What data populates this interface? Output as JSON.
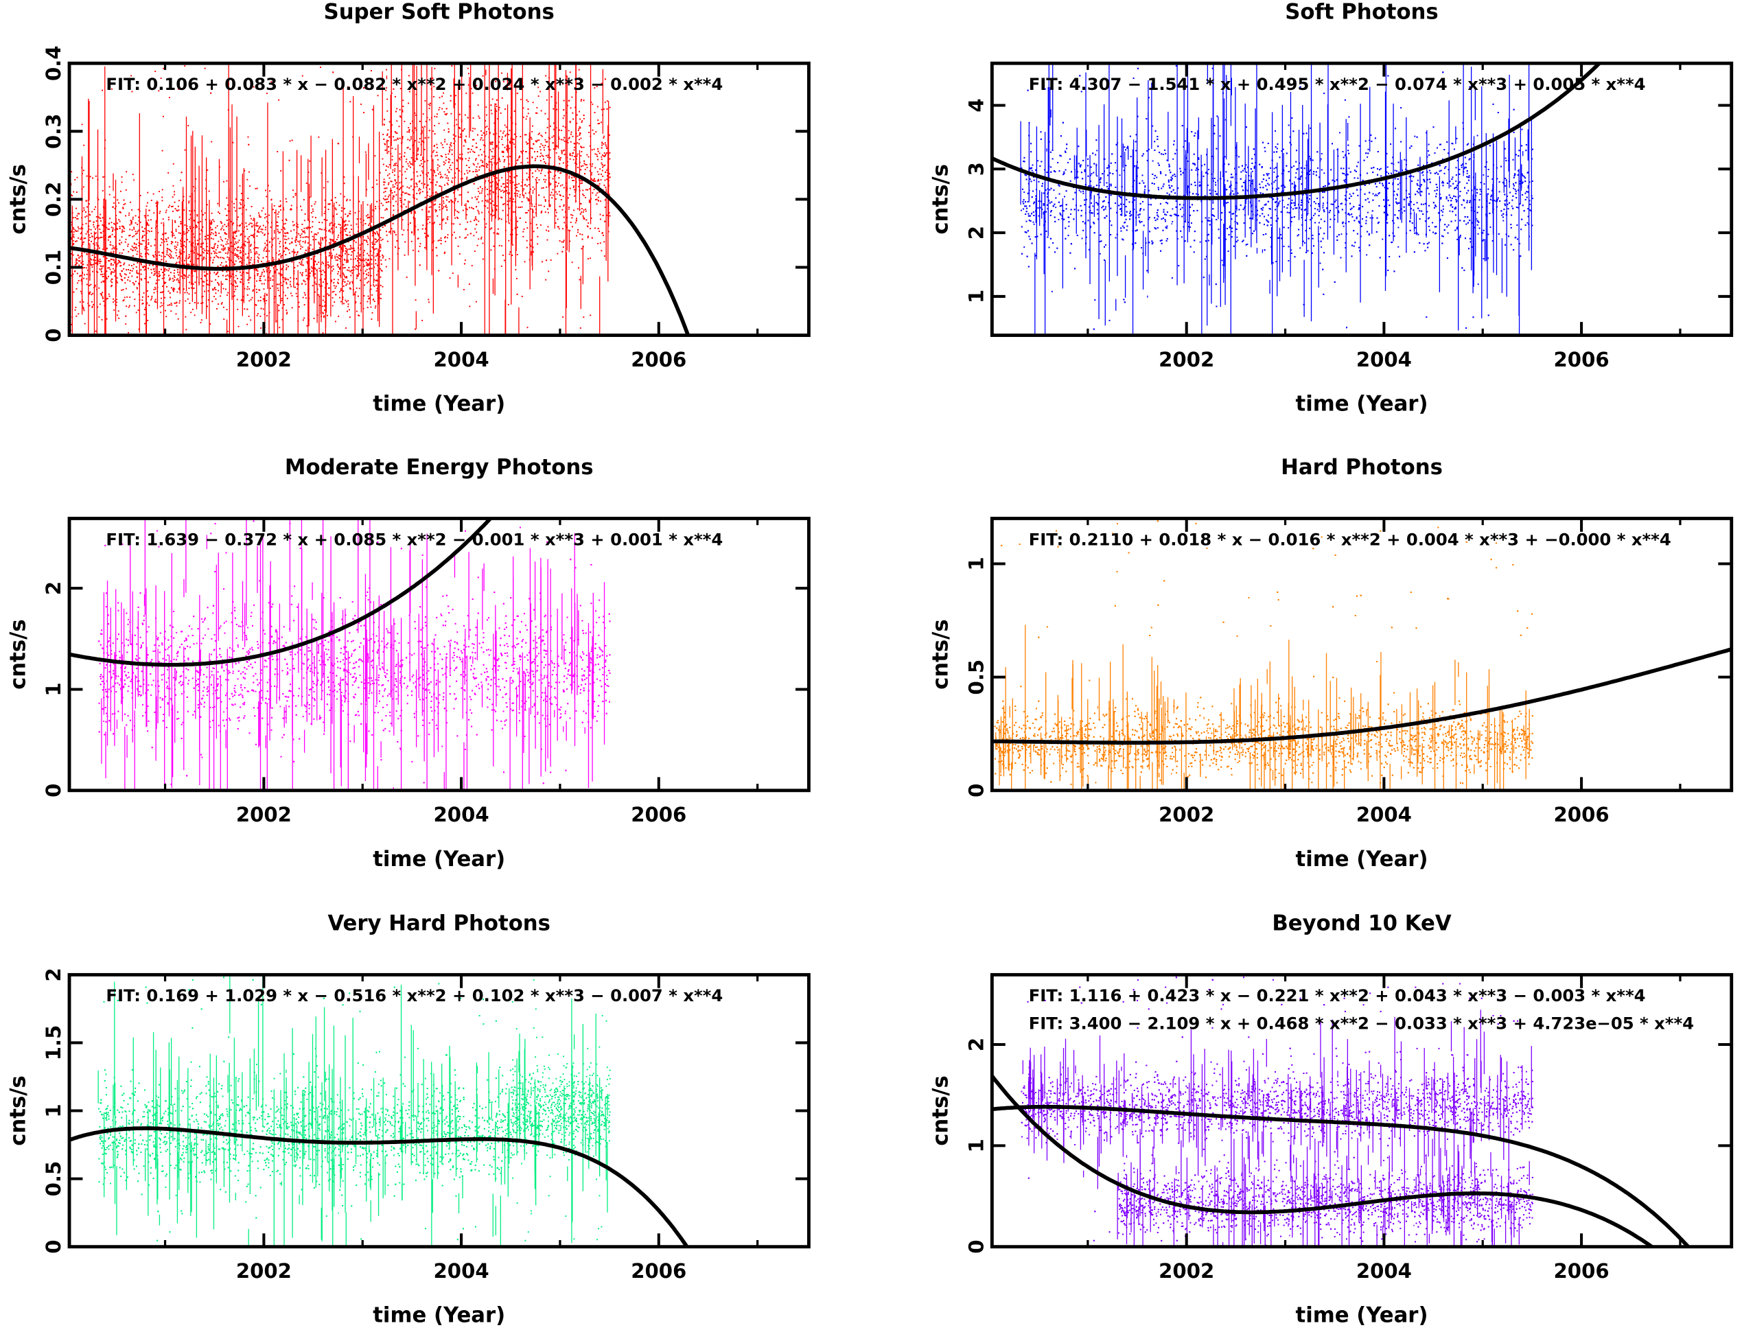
{
  "chart_data": [
    {
      "type": "scatter",
      "title": "Super Soft Photons",
      "xlabel": "time (Year)",
      "ylabel": "cnts/s",
      "xlim": [
        2000.03,
        2007.52
      ],
      "ylim": [
        0,
        0.4
      ],
      "xticks": [
        "2002",
        "2004",
        "2006"
      ],
      "yticks": [
        "0",
        "0.1",
        "0.2",
        "0.3",
        "0.4"
      ],
      "color": "#ff0000",
      "fit_variable": "x = year - 1999",
      "fits": [
        {
          "label": "FIT:  0.106 + 0.083 * x − 0.082 * x**2 + 0.024 * x**3 − 0.002 * x**4",
          "coef": [
            0.106,
            0.083,
            -0.082,
            0.024,
            -0.002
          ]
        }
      ],
      "bands": [
        {
          "x": [
            2000.03,
            2000.32
          ],
          "center": 0.13,
          "spread": 0.05
        },
        {
          "x": [
            2000.32,
            2003.2
          ],
          "center": 0.12,
          "spread": 0.045
        },
        {
          "x": [
            2003.2,
            2005.5
          ],
          "center": 0.24,
          "spread": 0.06
        }
      ],
      "range_y": [
        0,
        0.4
      ]
    },
    {
      "type": "scatter",
      "title": "Soft Photons",
      "xlabel": "time (Year)",
      "ylabel": "cnts/s",
      "xlim": [
        2000.03,
        2007.52
      ],
      "ylim": [
        0.39,
        4.66
      ],
      "xticks": [
        "2002",
        "2004",
        "2006"
      ],
      "yticks": [
        "1",
        "2",
        "3",
        "4"
      ],
      "color": "#0000ff",
      "fit_variable": "x = year - 1999",
      "fits": [
        {
          "label": "FIT:  4.307 − 1.541 * x + 0.495 * x**2 − 0.074 * x**3 + 0.005 * x**4",
          "coef": [
            4.307,
            -1.541,
            0.495,
            -0.074,
            0.005
          ]
        }
      ],
      "bands": [
        {
          "x": [
            2000.32,
            2005.5
          ],
          "center": 2.6,
          "spread": 0.45
        }
      ],
      "range_y": [
        0.39,
        4.66
      ]
    },
    {
      "type": "scatter",
      "title": "Moderate Energy Photons",
      "xlabel": "time (Year)",
      "ylabel": "cnts/s",
      "xlim": [
        2000.03,
        2007.52
      ],
      "ylim": [
        0,
        2.69
      ],
      "xticks": [
        "2002",
        "2004",
        "2006"
      ],
      "yticks": [
        "0",
        "1",
        "2"
      ],
      "color": "#ff00ff",
      "fit_variable": "x = year - 1999",
      "fits": [
        {
          "label": "FIT:  1.639 − 0.372 * x + 0.085 * x**2 − 0.001 * x**3 + 0.001 * x**4",
          "coef": [
            1.639,
            -0.372,
            0.085,
            -0.001,
            0.001
          ]
        }
      ],
      "bands": [
        {
          "x": [
            2000.32,
            2005.5
          ],
          "center": 1.2,
          "spread": 0.3
        }
      ],
      "range_y": [
        0,
        2.69
      ]
    },
    {
      "type": "scatter",
      "title": "Hard Photons",
      "xlabel": "time (Year)",
      "ylabel": "cnts/s",
      "xlim": [
        2000.03,
        2007.52
      ],
      "ylim": [
        0,
        1.2
      ],
      "xticks": [
        "2002",
        "2004",
        "2006"
      ],
      "yticks": [
        "0",
        "0.5",
        "1"
      ],
      "color": "#ff8000",
      "fit_variable": "x = year - 1999",
      "fits": [
        {
          "label": "FIT:  0.2110 + 0.018 * x − 0.016 * x**2 + 0.004 * x**3 + −0.000 * x**4",
          "coef": [
            0.211,
            0.018,
            -0.016,
            0.004,
            -0.0002
          ]
        }
      ],
      "bands": [
        {
          "x": [
            2000.05,
            2005.5
          ],
          "center": 0.22,
          "spread": 0.07
        }
      ],
      "range_y": [
        0,
        1.2
      ]
    },
    {
      "type": "scatter",
      "title": "Very Hard  Photons",
      "xlabel": "time (Year)",
      "ylabel": "cnts/s",
      "xlim": [
        2000.03,
        2007.52
      ],
      "ylim": [
        0,
        2
      ],
      "xticks": [
        "2002",
        "2004",
        "2006"
      ],
      "yticks": [
        "0",
        "0.5",
        "1",
        "1.5",
        "2"
      ],
      "color": "#00ee80",
      "fit_variable": "x = year - 1999",
      "fits": [
        {
          "label": "FIT:  0.169 + 1.029 * x − 0.516 * x**2 + 0.102 * x**3 − 0.007 * x**4",
          "coef": [
            0.169,
            1.029,
            -0.516,
            0.102,
            -0.007
          ]
        }
      ],
      "bands": [
        {
          "x": [
            2000.32,
            2004.5
          ],
          "center": 0.85,
          "spread": 0.18
        },
        {
          "x": [
            2004.5,
            2005.5
          ],
          "center": 1.0,
          "spread": 0.15
        }
      ],
      "range_y": [
        0,
        2
      ]
    },
    {
      "type": "scatter",
      "title": "Beyond 10 KeV",
      "xlabel": "time (Year)",
      "ylabel": "cnts/s",
      "xlim": [
        2000.03,
        2007.52
      ],
      "ylim": [
        0,
        2.69
      ],
      "xticks": [
        "2002",
        "2004",
        "2006"
      ],
      "yticks": [
        "0",
        "1",
        "2"
      ],
      "color": "#8000ff",
      "fit_variable": "x = year - 1999",
      "fits": [
        {
          "label": "FIT:  1.116 + 0.423 * x − 0.221 * x**2 + 0.043 * x**3 − 0.003 * x**4",
          "coef": [
            1.116,
            0.423,
            -0.221,
            0.043,
            -0.003
          ]
        },
        {
          "label": "FIT:  3.400 − 2.109 * x + 0.468 * x**2 − 0.033 * x**3 + 4.723e−05 * x**4",
          "coef": [
            3.4,
            -2.109,
            0.468,
            -0.033,
            4.723e-05
          ]
        }
      ],
      "bands": [
        {
          "x": [
            2000.32,
            2005.5
          ],
          "center": 1.4,
          "spread": 0.15
        },
        {
          "x": [
            2001.3,
            2005.5
          ],
          "center": 0.45,
          "spread": 0.15
        }
      ],
      "range_y": [
        0,
        2.69
      ]
    }
  ]
}
